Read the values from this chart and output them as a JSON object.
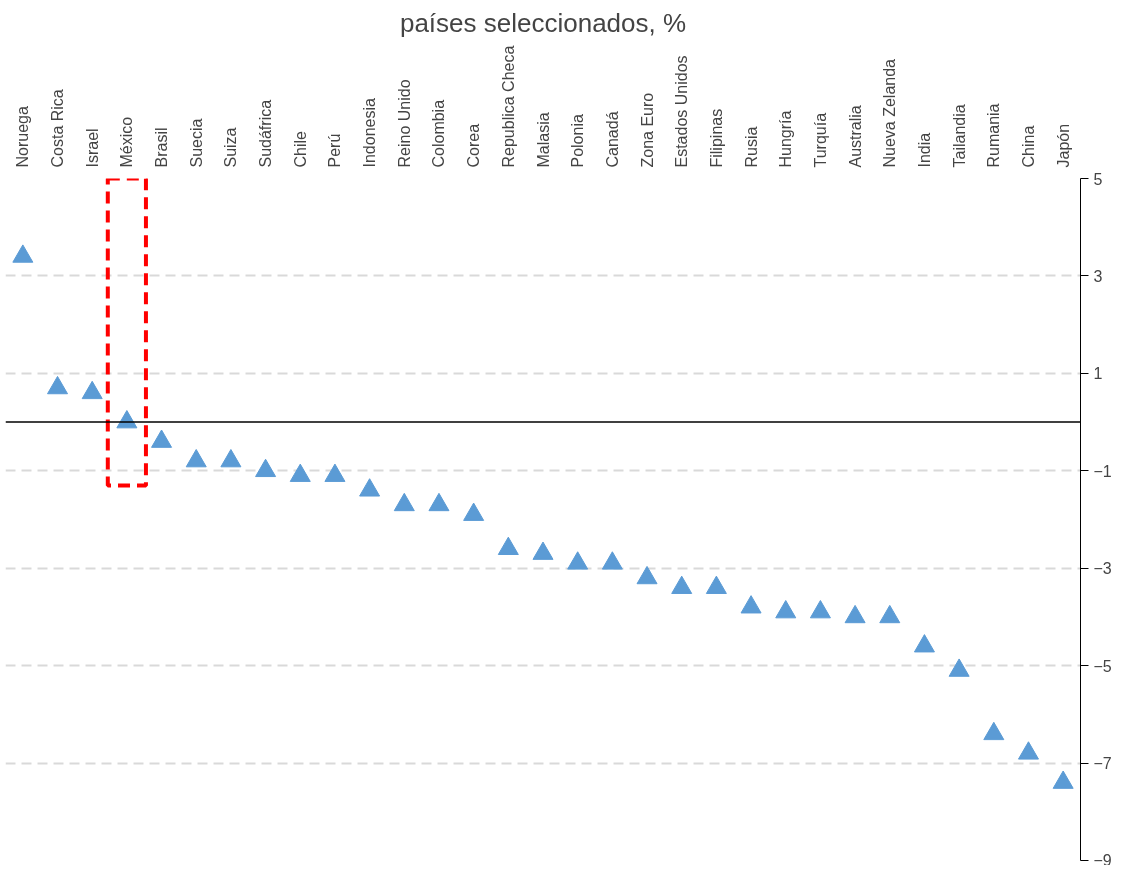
{
  "chart_data": {
    "type": "scatter",
    "title": "países seleccionados, %",
    "categories": [
      "Noruega",
      "Costa Rica",
      "Israel",
      "México",
      "Brasil",
      "Suecia",
      "Suiza",
      "Sudáfrica",
      "Chile",
      "Perú",
      "Indonesia",
      "Reino Unido",
      "Colombia",
      "Corea",
      "Republica Checa",
      "Malasia",
      "Polonia",
      "Canadá",
      "Zona Euro",
      "Estados Unidos",
      "Filipinas",
      "Rusia",
      "Hungría",
      "Turquía",
      "Australia",
      "Nueva Zelanda",
      "India",
      "Tailandia",
      "Rumania",
      "China",
      "Japón"
    ],
    "series": [
      {
        "color": "#5b9bd5",
        "values": [
          3.4,
          0.7,
          0.6,
          0.0,
          -0.4,
          -0.8,
          -0.8,
          -1.0,
          -1.1,
          -1.1,
          -1.4,
          -1.7,
          -1.7,
          -1.9,
          -2.6,
          -2.7,
          -2.9,
          -2.9,
          -3.2,
          -3.4,
          -3.4,
          -3.8,
          -3.9,
          -3.9,
          -4.0,
          -4.0,
          -4.6,
          -5.1,
          -6.4,
          -6.8,
          -7.4
        ]
      }
    ],
    "marker": "triangle",
    "ylim": [
      -9,
      5
    ],
    "yticks": [
      5,
      3,
      1,
      -1,
      -3,
      -5,
      -7,
      -9
    ],
    "grid": "y",
    "ref_lines": [
      {
        "axis": "y",
        "value": 0,
        "color": "#000000"
      }
    ]
  }
}
